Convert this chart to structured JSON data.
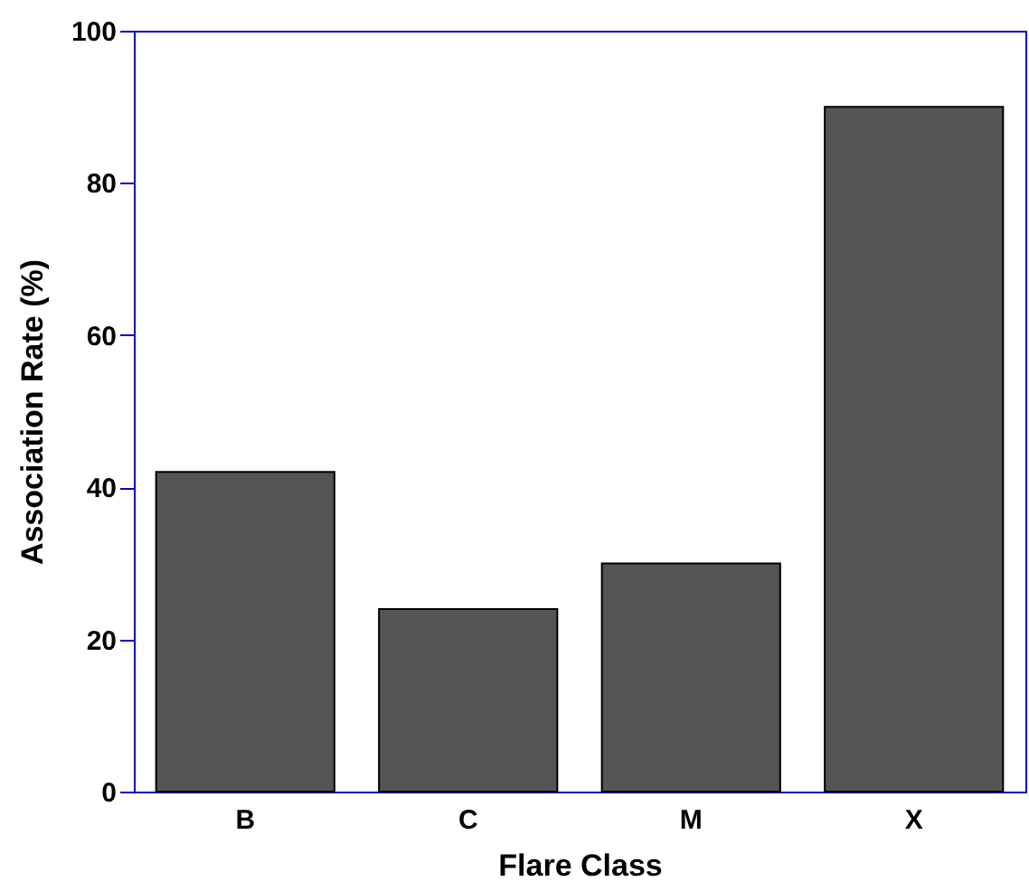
{
  "chart_data": {
    "type": "bar",
    "xlabel": "Flare Class",
    "ylabel": "Association Rate (%)",
    "categories": [
      "B",
      "C",
      "M",
      "X"
    ],
    "values": [
      42,
      24,
      30,
      90
    ],
    "color": "#555555",
    "ylim": [
      0,
      100
    ],
    "yticks": [
      0,
      20,
      40,
      60,
      80,
      100
    ],
    "grid": false
  }
}
